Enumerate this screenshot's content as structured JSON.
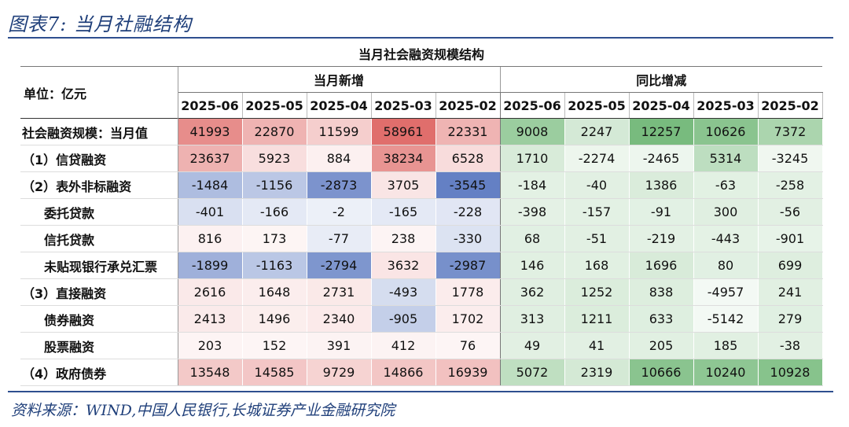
{
  "figure_title": "图表7:  当月社融结构",
  "source": "资料来源：WIND,中国人民银行,长城证券产业金融研究院",
  "table": {
    "caption": "当月社会融资规模结构",
    "unit_label": "单位：亿元",
    "groups": [
      "当月新增",
      "同比增减"
    ],
    "dates": [
      "2025-06",
      "2025-05",
      "2025-04",
      "2025-03",
      "2025-02"
    ],
    "rows": [
      {
        "label": "社会融资规模：当月值",
        "indent": 0,
        "new": [
          41993,
          22870,
          11599,
          58961,
          22331
        ],
        "yoy": [
          9008,
          2247,
          12257,
          10626,
          7372
        ]
      },
      {
        "label": "（1）信贷融资",
        "indent": 0,
        "new": [
          23637,
          5923,
          884,
          38234,
          6528
        ],
        "yoy": [
          1710,
          -2274,
          -2465,
          5314,
          -3245
        ]
      },
      {
        "label": "（2）表外非标融资",
        "indent": 0,
        "new": [
          -1484,
          -1156,
          -2873,
          3705,
          -3545
        ],
        "yoy": [
          -184,
          -40,
          1386,
          -63,
          -258
        ]
      },
      {
        "label": "委托贷款",
        "indent": 1,
        "new": [
          -401,
          -166,
          -2,
          -165,
          -228
        ],
        "yoy": [
          -398,
          -157,
          -91,
          300,
          -56
        ]
      },
      {
        "label": "信托贷款",
        "indent": 1,
        "new": [
          816,
          173,
          -77,
          238,
          -330
        ],
        "yoy": [
          68,
          -51,
          -219,
          -443,
          -901
        ]
      },
      {
        "label": "未贴现银行承兑汇票",
        "indent": 1,
        "new": [
          -1899,
          -1163,
          -2794,
          3632,
          -2987
        ],
        "yoy": [
          146,
          168,
          1696,
          80,
          699
        ]
      },
      {
        "label": "（3）直接融资",
        "indent": 0,
        "new": [
          2616,
          1648,
          2731,
          -493,
          1778
        ],
        "yoy": [
          362,
          1252,
          838,
          -4957,
          241
        ]
      },
      {
        "label": "债券融资",
        "indent": 1,
        "new": [
          2413,
          1496,
          2340,
          -905,
          1702
        ],
        "yoy": [
          313,
          1211,
          633,
          -5142,
          279
        ]
      },
      {
        "label": "股票融资",
        "indent": 1,
        "new": [
          203,
          152,
          391,
          412,
          76
        ],
        "yoy": [
          49,
          41,
          205,
          185,
          -38
        ]
      },
      {
        "label": "（4）政府债券",
        "indent": 0,
        "new": [
          13548,
          14585,
          9729,
          14866,
          16939
        ],
        "yoy": [
          5072,
          2319,
          10666,
          10240,
          10928
        ]
      }
    ]
  },
  "colors": {
    "positive_red": "#e07a78",
    "negative_blue": "#6f8cc8",
    "green": "#7dbf82",
    "rule_blue": "#2e4f8f"
  }
}
